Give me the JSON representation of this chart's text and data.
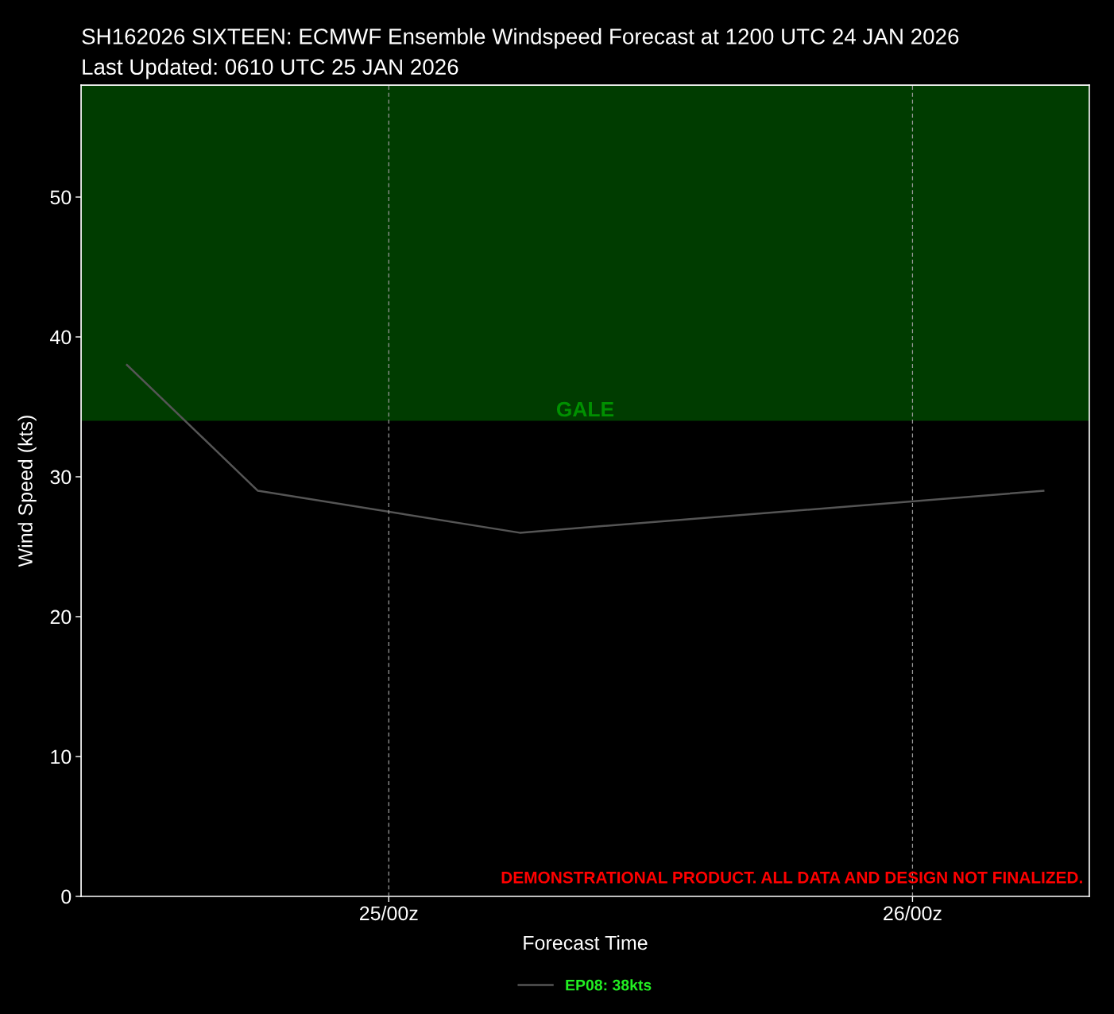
{
  "chart_data": {
    "type": "line",
    "title": "SH162026 SIXTEEN: ECMWF Ensemble Windspeed Forecast at 1200 UTC 24 JAN 2026",
    "subtitle": "Last Updated: 0610 UTC 25 JAN 2026",
    "xlabel": "Forecast Time",
    "ylabel": "Wind Speed (kts)",
    "x": [
      "2026-01-24T12:00",
      "2026-01-24T18:00",
      "2026-01-25T06:00",
      "2026-01-26T06:00"
    ],
    "series": [
      {
        "name": "EP08: 38kts",
        "color": "#555555",
        "values": [
          38,
          29,
          26,
          29
        ]
      }
    ],
    "xlim": [
      "2026-01-24T09:54",
      "2026-01-26T08:06"
    ],
    "xticks": [
      {
        "value": "2026-01-25T00:00",
        "label": "25/00z"
      },
      {
        "value": "2026-01-26T00:00",
        "label": "26/00z"
      }
    ],
    "ylim": [
      0,
      58
    ],
    "yticks": [
      0,
      10,
      20,
      30,
      40,
      50
    ],
    "bands": [
      {
        "axis": "y",
        "from": 34,
        "to": 58,
        "label": "GALE",
        "color": "#003c00"
      }
    ],
    "annotations": [
      "DEMONSTRATIONAL PRODUCT. ALL DATA AND DESIGN NOT FINALIZED."
    ],
    "grid": "x",
    "legend": "bottom",
    "line_style": "solid",
    "marker": "none"
  }
}
